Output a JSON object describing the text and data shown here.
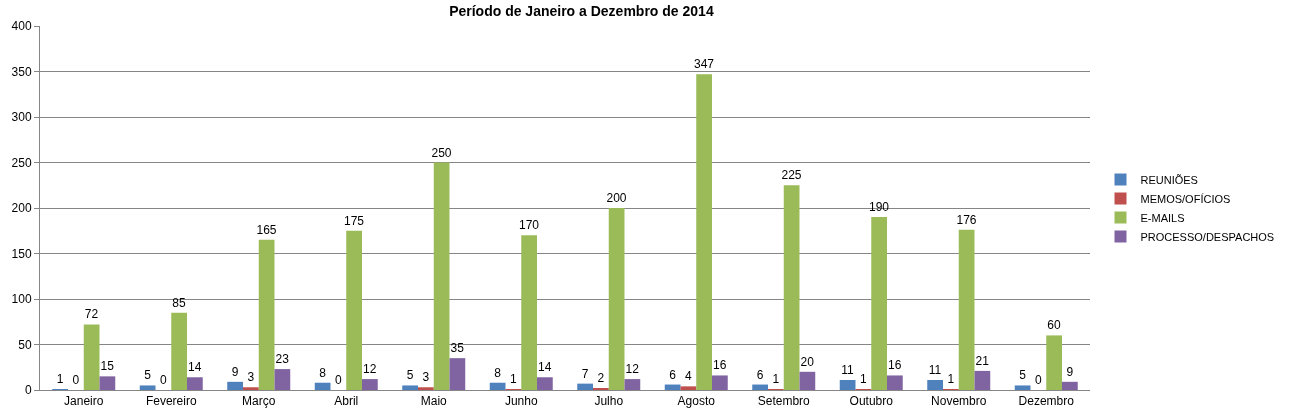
{
  "chart_data": {
    "type": "bar",
    "title": "Período de Janeiro a Dezembro de 2014",
    "categories": [
      "Janeiro",
      "Fevereiro",
      "Março",
      "Abril",
      "Maio",
      "Junho",
      "Julho",
      "Agosto",
      "Setembro",
      "Outubro",
      "Novembro",
      "Dezembro"
    ],
    "series": [
      {
        "name": "REUNIÕES",
        "color": "#4f81bd",
        "values": [
          1,
          5,
          9,
          8,
          5,
          8,
          7,
          6,
          6,
          11,
          11,
          5
        ]
      },
      {
        "name": "MEMOS/OFÍCIOS",
        "color": "#c0504d",
        "values": [
          0,
          0,
          3,
          0,
          3,
          1,
          2,
          4,
          1,
          1,
          1,
          0
        ]
      },
      {
        "name": "E-MAILS",
        "color": "#9bbb59",
        "values": [
          72,
          85,
          165,
          175,
          250,
          170,
          200,
          347,
          225,
          190,
          176,
          60
        ]
      },
      {
        "name": "PROCESSO/DESPACHOS",
        "color": "#8064a2",
        "values": [
          15,
          14,
          23,
          12,
          35,
          14,
          12,
          16,
          20,
          16,
          21,
          9
        ]
      }
    ],
    "ylim": [
      0,
      400
    ],
    "yticks": [
      0,
      50,
      100,
      150,
      200,
      250,
      300,
      350,
      400
    ],
    "grid": "y",
    "legend": "right",
    "data_labels": true
  }
}
